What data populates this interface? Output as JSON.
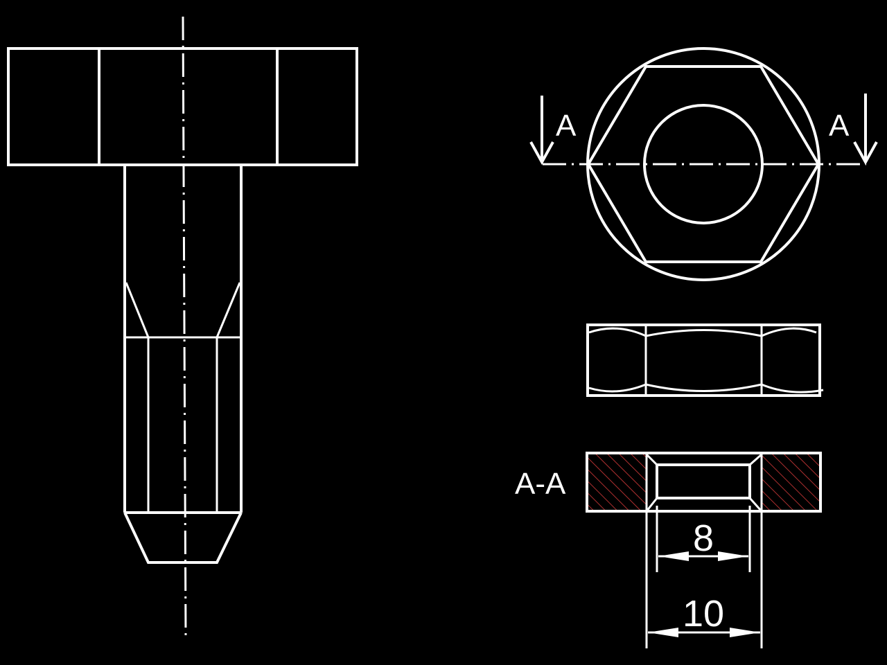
{
  "section_marks": {
    "left": "A",
    "right": "A"
  },
  "section_title": "A-A",
  "dimensions": {
    "inner_width": "8",
    "outer_width": "10"
  },
  "colors": {
    "background": "#000000",
    "line": "#ffffff",
    "hatch": "#b03030"
  }
}
